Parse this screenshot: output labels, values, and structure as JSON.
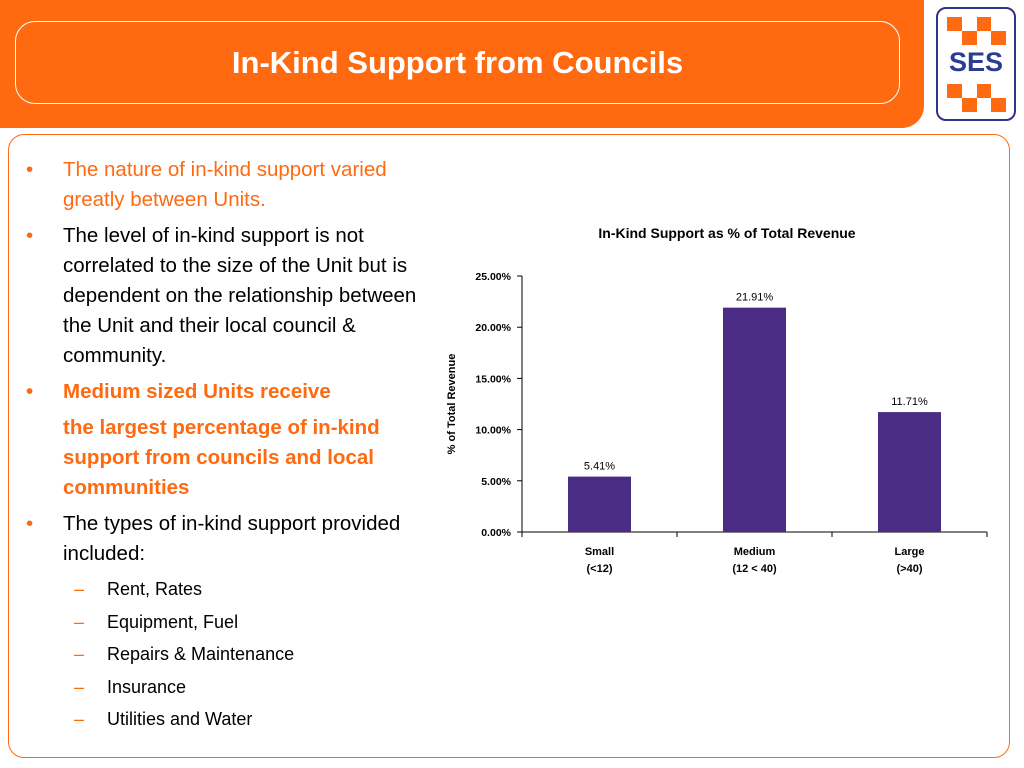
{
  "slide": {
    "title": "In-Kind Support from Councils",
    "logo_text": "SES"
  },
  "bullets": [
    {
      "text": "The nature of in-kind support varied greatly between Units.",
      "style": "orange"
    },
    {
      "text": "The level of in-kind support is not correlated to the size of the Unit but is dependent on the relationship between the Unit and their local council & community.",
      "style": "normal"
    },
    {
      "text": "Medium sized Units receive",
      "style": "bold"
    },
    {
      "text": "the largest percentage of in-kind support from councils and local communities",
      "style": "bold-continuation"
    },
    {
      "text": "The types of in-kind support provided included:",
      "style": "normal"
    }
  ],
  "in_kind_types": [
    "Rent,   Rates",
    "Equipment, Fuel",
    "Repairs & Maintenance",
    "Insurance",
    "Utilities and Water"
  ],
  "colors": {
    "accent": "#ff6a10",
    "bar": "#4a2c85",
    "logo_blue": "#2b3d8e"
  },
  "chart_data": {
    "type": "bar",
    "title": "In-Kind Support as % of Total Revenue",
    "ylabel": "% of Total Revenue",
    "xlabel": "",
    "categories": [
      "Small\n(<12)",
      "Medium\n(12 < 40)",
      "Large\n(>40)"
    ],
    "values": [
      5.41,
      21.91,
      11.71
    ],
    "data_labels": [
      "5.41%",
      "21.91%",
      "11.71%"
    ],
    "ylim": [
      0,
      25
    ],
    "yticks": [
      "0.00%",
      "5.00%",
      "10.00%",
      "15.00%",
      "20.00%",
      "25.00%"
    ],
    "grid": false,
    "legend": "none"
  }
}
